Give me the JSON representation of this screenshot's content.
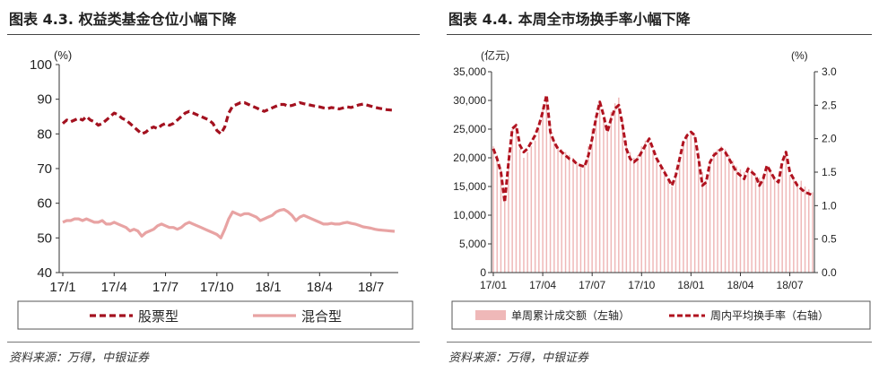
{
  "colors": {
    "equity": "#a3111f",
    "hybrid": "#e8a3a3",
    "volume_bar": "#efb8b8",
    "turnover": "#b0121f"
  },
  "left": {
    "title": "图表 4.3. 权益类基金仓位小幅下降",
    "source": "资料来源：万得，中银证券"
  },
  "right": {
    "title": "图表 4.4. 本周全市场换手率小幅下降",
    "source": "资料来源：万得，中银证券"
  },
  "chart_data": [
    {
      "type": "line",
      "y_unit": "(%)",
      "ylim": [
        40,
        100
      ],
      "y_ticks": [
        "40",
        "50",
        "60",
        "70",
        "80",
        "90",
        "100"
      ],
      "x_ticks": [
        "17/1",
        "17/4",
        "17/7",
        "17/10",
        "18/1",
        "18/4",
        "18/7"
      ],
      "x_tick_index": [
        0,
        13,
        26,
        39,
        52,
        65,
        78
      ],
      "grid": false,
      "legend_position": "bottom",
      "series": [
        {
          "name": "股票型",
          "style": "dashed",
          "values": [
            83,
            84,
            83.5,
            84,
            84.5,
            84,
            85,
            84,
            83.5,
            82.5,
            83,
            84,
            85,
            86,
            85.5,
            84.5,
            84,
            83,
            82,
            81,
            80,
            80.5,
            81.5,
            82,
            81.5,
            82.5,
            83,
            82.5,
            83,
            84,
            85,
            86,
            86.5,
            86,
            85.5,
            85,
            84.5,
            84,
            83,
            81,
            80,
            82,
            86,
            88,
            88.5,
            89,
            89,
            88.5,
            88,
            87.5,
            87,
            86.5,
            87,
            87.5,
            88,
            88.5,
            88.5,
            88,
            88.2,
            88.6,
            89,
            88.7,
            88.5,
            88.2,
            88,
            87.8,
            87.5,
            87.3,
            87.6,
            87.4,
            87.2,
            87.5,
            87.8,
            87.6,
            88,
            88.4,
            88.6,
            88.3,
            88,
            87.7,
            87.4,
            87.2,
            87,
            86.9,
            86.8
          ]
        },
        {
          "name": "混合型",
          "style": "solid",
          "values": [
            54.5,
            55,
            55,
            55.5,
            55.5,
            55,
            55.5,
            55,
            54.5,
            54.5,
            55,
            54,
            54,
            54.5,
            54,
            53.5,
            53,
            52,
            52.5,
            52,
            50.5,
            51.5,
            52,
            52.5,
            53.5,
            54,
            53.5,
            53,
            53,
            52.5,
            53,
            54,
            54.5,
            54,
            53.5,
            53,
            52.5,
            52,
            51.5,
            51,
            50,
            52.5,
            55.5,
            57.5,
            57,
            56.5,
            57,
            57,
            56.5,
            56,
            55,
            55.5,
            56,
            56.5,
            57.5,
            58,
            58.2,
            57.5,
            56.5,
            55,
            56,
            56.5,
            56,
            55.5,
            55,
            54.5,
            54,
            54,
            54.2,
            54,
            54,
            54.3,
            54.5,
            54.2,
            54,
            53.6,
            53.2,
            53,
            52.8,
            52.5,
            52.3,
            52.2,
            52.1,
            52,
            51.9
          ]
        }
      ]
    },
    {
      "type": "bar+line",
      "y_left_unit": "(亿元)",
      "y_right_unit": "(%)",
      "ylim_left": [
        0,
        35000
      ],
      "ylim_right": [
        0,
        3.0
      ],
      "y_left_ticks": [
        "0",
        "5,000",
        "10,000",
        "15,000",
        "20,000",
        "25,000",
        "30,000",
        "35,000"
      ],
      "y_right_ticks": [
        "0.0",
        "0.5",
        "1.0",
        "1.5",
        "2.0",
        "2.5",
        "3.0"
      ],
      "x_ticks": [
        "17/01",
        "17/04",
        "17/07",
        "17/10",
        "18/01",
        "18/04",
        "18/07"
      ],
      "x_tick_index": [
        0,
        13,
        26,
        39,
        52,
        65,
        78
      ],
      "grid": false,
      "legend_position": "bottom",
      "series": [
        {
          "name": "单周累计成交额（左轴）",
          "type": "bar",
          "values": [
            22000,
            20500,
            18000,
            13000,
            21000,
            25000,
            26000,
            21500,
            20000,
            21000,
            22000,
            23000,
            25000,
            29000,
            30500,
            26000,
            23000,
            22000,
            21500,
            21000,
            20500,
            20000,
            19000,
            18500,
            19000,
            22000,
            25000,
            27500,
            29500,
            27000,
            25000,
            28000,
            29500,
            30500,
            27000,
            23000,
            21000,
            20000,
            20500,
            22000,
            23000,
            22500,
            21000,
            20000,
            19000,
            18000,
            16000,
            15000,
            17000,
            19500,
            22000,
            24000,
            24500,
            24000,
            21000,
            17500,
            16000,
            19000,
            21000,
            21500,
            22000,
            21500,
            20500,
            19500,
            18500,
            18000,
            17500,
            18500,
            18000,
            17000,
            16500,
            17000,
            18500,
            17500,
            16500,
            16000,
            18500,
            21000,
            17000,
            16500,
            15500,
            16000,
            15000,
            14500,
            14000
          ]
        },
        {
          "name": "周内平均换手率（右轴）",
          "type": "line",
          "style": "dashed",
          "values": [
            1.85,
            1.7,
            1.5,
            1.05,
            1.65,
            2.15,
            2.2,
            1.9,
            1.8,
            1.85,
            1.95,
            2.05,
            2.2,
            2.4,
            2.65,
            2.1,
            1.95,
            1.85,
            1.8,
            1.75,
            1.7,
            1.68,
            1.62,
            1.6,
            1.58,
            1.75,
            2.0,
            2.3,
            2.55,
            2.35,
            2.1,
            2.3,
            2.45,
            2.5,
            2.2,
            1.85,
            1.7,
            1.65,
            1.7,
            1.8,
            1.9,
            2.0,
            1.85,
            1.7,
            1.6,
            1.5,
            1.4,
            1.3,
            1.45,
            1.7,
            1.95,
            2.05,
            2.1,
            2.05,
            1.7,
            1.3,
            1.35,
            1.65,
            1.75,
            1.8,
            1.85,
            1.8,
            1.7,
            1.6,
            1.5,
            1.45,
            1.4,
            1.55,
            1.5,
            1.45,
            1.3,
            1.4,
            1.6,
            1.5,
            1.4,
            1.35,
            1.65,
            1.8,
            1.5,
            1.4,
            1.3,
            1.25,
            1.2,
            1.18,
            1.15
          ]
        }
      ]
    }
  ]
}
